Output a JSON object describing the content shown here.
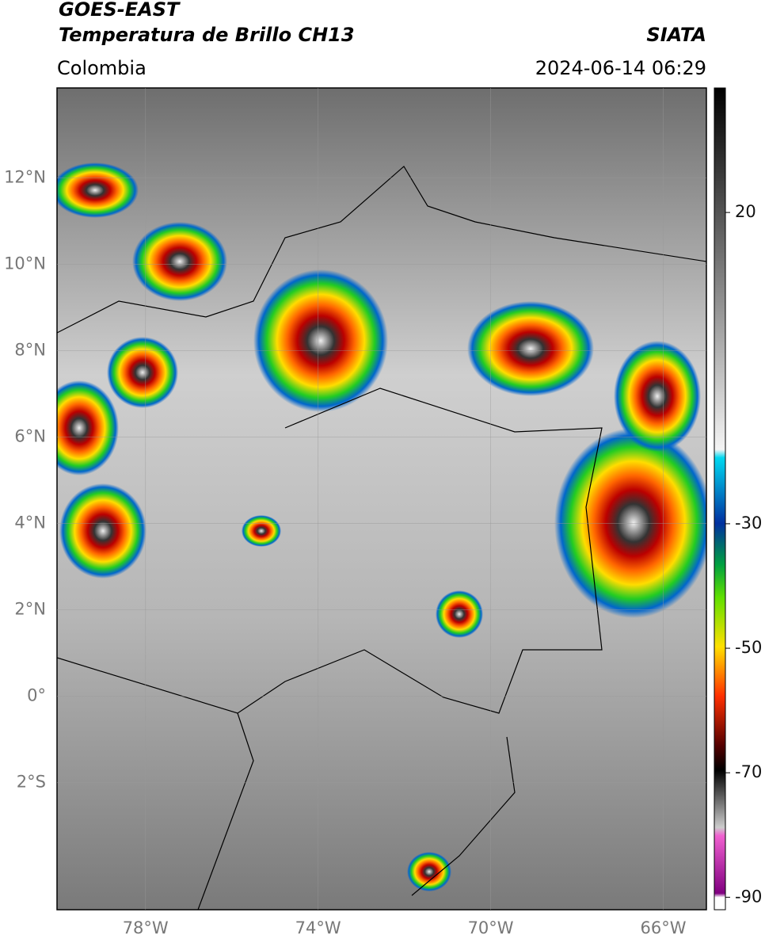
{
  "header": {
    "satellite": "GOES-EAST",
    "product": "Temperatura de Brillo CH13",
    "region": "Colombia",
    "source": "SIATA",
    "datetime": "2024-06-14 06:29"
  },
  "map": {
    "lonlim": [
      -80.05,
      -65.0
    ],
    "latlim": [
      -4.94,
      14.08
    ],
    "lat_ticks": [
      {
        "value": 12,
        "label": "12°N"
      },
      {
        "value": 10,
        "label": "10°N"
      },
      {
        "value": 8,
        "label": "8°N"
      },
      {
        "value": 6,
        "label": "6°N"
      },
      {
        "value": 4,
        "label": "4°N"
      },
      {
        "value": 2,
        "label": "2°N"
      },
      {
        "value": 0,
        "label": "0°"
      },
      {
        "value": -2,
        "label": "2°S"
      }
    ],
    "lon_ticks": [
      {
        "value": -78,
        "label": "78°W"
      },
      {
        "value": -74,
        "label": "74°W"
      },
      {
        "value": -70,
        "label": "70°W"
      },
      {
        "value": -66,
        "label": "66°W"
      }
    ]
  },
  "colorbar": {
    "range": [
      -92,
      40
    ],
    "ticks": [
      20,
      -30,
      -50,
      -70,
      -90
    ]
  }
}
